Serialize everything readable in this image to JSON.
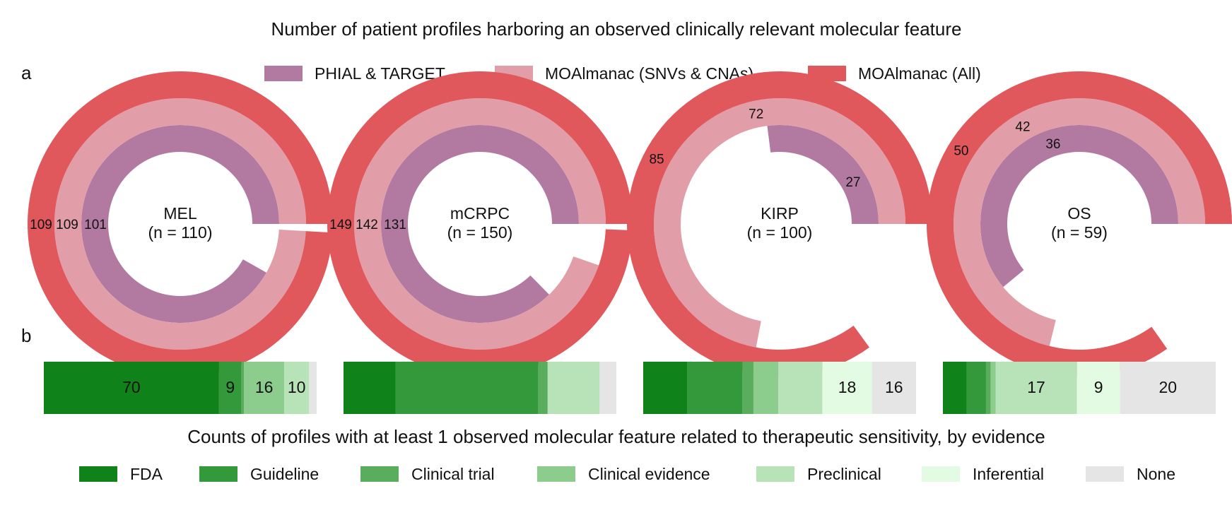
{
  "figure": {
    "title": "Number of patient profiles harboring an observed clinically relevant molecular feature",
    "panel_a": "a",
    "panel_b": "b",
    "caption_b": "Counts of profiles with at least 1 observed molecular feature related to therapeutic sensitivity, by evidence"
  },
  "colors": {
    "phial": "#b27aa1",
    "snv": "#e29ea8",
    "all": "#e0575c",
    "evidence": [
      "#10821a",
      "#33993a",
      "#5bad5e",
      "#8ccc8c",
      "#b8e3b8",
      "#e2fbe2",
      "#e5e5e5"
    ]
  },
  "chart_data": [
    {
      "type": "pie",
      "subtype": "nested-donut",
      "legend": [
        "PHIAL & TARGET",
        "MOAlmanac (SNVs & CNAs)",
        "MOAlmanac (All)"
      ],
      "legend_position": "top-center",
      "cohorts": [
        {
          "name": "MEL",
          "n_label": "(n = 110)",
          "n": 110,
          "values": [
            101,
            109,
            109
          ],
          "labels": [
            "101",
            "109",
            "109"
          ]
        },
        {
          "name": "mCRPC",
          "n_label": "(n = 150)",
          "n": 150,
          "values": [
            131,
            142,
            149
          ],
          "labels": [
            "131",
            "142",
            "149"
          ]
        },
        {
          "name": "KIRP",
          "n_label": "(n = 100)",
          "n": 100,
          "values": [
            27,
            72,
            85
          ],
          "labels": [
            "27",
            "72",
            "85"
          ]
        },
        {
          "name": "OS",
          "n_label": "(n = 59)",
          "n": 59,
          "values": [
            36,
            42,
            50
          ],
          "labels": [
            "36",
            "42",
            "50"
          ]
        }
      ]
    },
    {
      "type": "bar",
      "subtype": "stacked-horizontal",
      "legend": [
        "FDA",
        "Guideline",
        "Clinical trial",
        "Clinical evidence",
        "Preclinical",
        "Inferential",
        "None"
      ],
      "legend_position": "bottom-center",
      "cohorts": [
        {
          "name": "MEL",
          "values": [
            70,
            9,
            1,
            16,
            10,
            0,
            3
          ],
          "labels": [
            "70",
            "9",
            "",
            "16",
            "10",
            "",
            ""
          ]
        },
        {
          "name": "mCRPC",
          "values": [
            28,
            77,
            5,
            0,
            28,
            0,
            9
          ],
          "labels": [
            "",
            "",
            "",
            "",
            "",
            "",
            ""
          ]
        },
        {
          "name": "KIRP",
          "values": [
            16,
            20,
            4,
            9,
            16,
            18,
            16
          ],
          "labels": [
            "",
            "",
            "",
            "",
            "",
            "18",
            "16"
          ]
        },
        {
          "name": "OS",
          "values": [
            5,
            4,
            1,
            1,
            17,
            9,
            20
          ],
          "labels": [
            "",
            "",
            "",
            "",
            "17",
            "9",
            "20"
          ]
        }
      ]
    }
  ]
}
